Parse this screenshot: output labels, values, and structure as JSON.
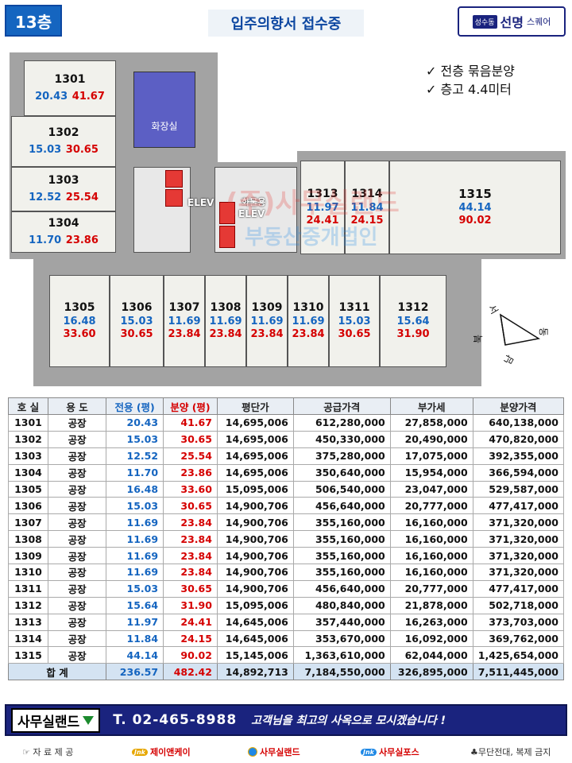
{
  "header": {
    "floor": "13층",
    "title": "입주의향서 접수중",
    "brand_small": "성수동",
    "brand_main": "선명",
    "brand_sub": "스퀘어"
  },
  "notes": [
    "✓  전층 묶음분양",
    "✓  층고 4.4미터"
  ],
  "plan": {
    "units": [
      {
        "no": "1301",
        "area": "20.43",
        "sale": "41.67"
      },
      {
        "no": "1302",
        "area": "15.03",
        "sale": "30.65"
      },
      {
        "no": "1303",
        "area": "12.52",
        "sale": "25.54"
      },
      {
        "no": "1304",
        "area": "11.70",
        "sale": "23.86"
      },
      {
        "no": "1305",
        "area": "16.48",
        "sale": "33.60"
      },
      {
        "no": "1306",
        "area": "15.03",
        "sale": "30.65"
      },
      {
        "no": "1307",
        "area": "11.69",
        "sale": "23.84"
      },
      {
        "no": "1308",
        "area": "11.69",
        "sale": "23.84"
      },
      {
        "no": "1309",
        "area": "11.69",
        "sale": "23.84"
      },
      {
        "no": "1310",
        "area": "11.69",
        "sale": "23.84"
      },
      {
        "no": "1311",
        "area": "15.03",
        "sale": "30.65"
      },
      {
        "no": "1312",
        "area": "15.64",
        "sale": "31.90"
      },
      {
        "no": "1313",
        "area": "11.97",
        "sale": "24.41"
      },
      {
        "no": "1314",
        "area": "11.84",
        "sale": "24.15"
      },
      {
        "no": "1315",
        "area": "44.14",
        "sale": "90.02"
      }
    ],
    "restroom_label": "화장실",
    "elev1_label": "ELEV",
    "elev2_label_a": "화물용",
    "elev2_label_b": "ELEV",
    "compass": {
      "n": "북",
      "s": "남",
      "e": "동",
      "w": "서"
    },
    "watermark_1": "(주)사무실랜드",
    "watermark_2": "부동산중개법인"
  },
  "table": {
    "headers": [
      "호 실",
      "용 도",
      "전용 (평)",
      "분양 (평)",
      "평단가",
      "공급가격",
      "부가세",
      "분양가격"
    ],
    "rows": [
      [
        "1301",
        "공장",
        "20.43",
        "41.67",
        "14,695,006",
        "612,280,000",
        "27,858,000",
        "640,138,000"
      ],
      [
        "1302",
        "공장",
        "15.03",
        "30.65",
        "14,695,006",
        "450,330,000",
        "20,490,000",
        "470,820,000"
      ],
      [
        "1303",
        "공장",
        "12.52",
        "25.54",
        "14,695,006",
        "375,280,000",
        "17,075,000",
        "392,355,000"
      ],
      [
        "1304",
        "공장",
        "11.70",
        "23.86",
        "14,695,006",
        "350,640,000",
        "15,954,000",
        "366,594,000"
      ],
      [
        "1305",
        "공장",
        "16.48",
        "33.60",
        "15,095,006",
        "506,540,000",
        "23,047,000",
        "529,587,000"
      ],
      [
        "1306",
        "공장",
        "15.03",
        "30.65",
        "14,900,706",
        "456,640,000",
        "20,777,000",
        "477,417,000"
      ],
      [
        "1307",
        "공장",
        "11.69",
        "23.84",
        "14,900,706",
        "355,160,000",
        "16,160,000",
        "371,320,000"
      ],
      [
        "1308",
        "공장",
        "11.69",
        "23.84",
        "14,900,706",
        "355,160,000",
        "16,160,000",
        "371,320,000"
      ],
      [
        "1309",
        "공장",
        "11.69",
        "23.84",
        "14,900,706",
        "355,160,000",
        "16,160,000",
        "371,320,000"
      ],
      [
        "1310",
        "공장",
        "11.69",
        "23.84",
        "14,900,706",
        "355,160,000",
        "16,160,000",
        "371,320,000"
      ],
      [
        "1311",
        "공장",
        "15.03",
        "30.65",
        "14,900,706",
        "456,640,000",
        "20,777,000",
        "477,417,000"
      ],
      [
        "1312",
        "공장",
        "15.64",
        "31.90",
        "15,095,006",
        "480,840,000",
        "21,878,000",
        "502,718,000"
      ],
      [
        "1313",
        "공장",
        "11.97",
        "24.41",
        "14,645,006",
        "357,440,000",
        "16,263,000",
        "373,703,000"
      ],
      [
        "1314",
        "공장",
        "11.84",
        "24.15",
        "14,645,006",
        "353,670,000",
        "16,092,000",
        "369,762,000"
      ],
      [
        "1315",
        "공장",
        "44.14",
        "90.02",
        "15,145,006",
        "1,363,610,000",
        "62,044,000",
        "1,425,654,000"
      ]
    ],
    "total": [
      "합    계",
      "236.57",
      "482.42",
      "14,892,713",
      "7,184,550,000",
      "326,895,000",
      "7,511,445,000"
    ]
  },
  "footer": {
    "brand": "사무실랜드",
    "phone": "T. 02-465-8988",
    "slogan": "고객님을 최고의 사옥으로 모시겠습니다 !"
  },
  "credits": {
    "source_label": "☞ 자 료 제 공",
    "jnk_logo": "Jnk",
    "jnk": "제이앤케이",
    "office_land": "사무실랜드",
    "office_plus_logo": "Jnk",
    "office_plus": "사무실포스",
    "copyright": "♣무단전대, 복제 금지"
  },
  "colors": {
    "accent_blue": "#1565c0",
    "sale_red": "#d50000",
    "footer_navy": "#1a237e"
  }
}
